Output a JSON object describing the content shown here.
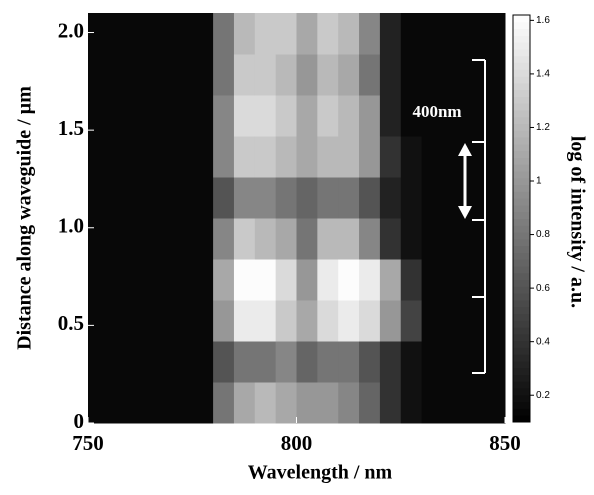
{
  "chart_data": {
    "type": "heatmap",
    "x_label": "Wavelength / nm",
    "y_label": "Distance along waveguide / µm",
    "colorbar_label": "log of intensity / a.u.",
    "annotation": "400nm",
    "xlim": [
      750,
      850
    ],
    "xticks": [
      750,
      800,
      850
    ],
    "ylim": [
      0,
      2.1
    ],
    "yticks": [
      0,
      0.5,
      {
        "value": 1,
        "label": "1.0"
      },
      1.5,
      {
        "value": 2,
        "label": "2.0"
      }
    ],
    "zlim": [
      0.1,
      1.62
    ],
    "zticks": [
      0.2,
      0.4,
      0.6,
      0.8,
      1,
      1.2,
      1.4,
      1.6
    ],
    "colormap": [
      "#000000",
      "#ffffff"
    ],
    "xbins": [
      750,
      755,
      760,
      765,
      770,
      775,
      780,
      785,
      790,
      795,
      800,
      805,
      810,
      815,
      820,
      825,
      830,
      835,
      840,
      845,
      850
    ],
    "ybins": [
      0,
      0.21,
      0.42,
      0.63,
      0.84,
      1.05,
      1.26,
      1.47,
      1.68,
      1.89,
      2.1
    ],
    "z": [
      [
        0.15,
        0.15,
        0.15,
        0.15,
        0.15,
        0.15,
        0.8,
        1.1,
        1.2,
        1.1,
        1.0,
        1.0,
        0.9,
        0.7,
        0.4,
        0.2,
        0.15,
        0.15,
        0.15,
        0.15
      ],
      [
        0.15,
        0.15,
        0.15,
        0.15,
        0.15,
        0.15,
        0.6,
        0.8,
        0.8,
        0.9,
        0.7,
        0.8,
        0.8,
        0.6,
        0.4,
        0.2,
        0.15,
        0.15,
        0.15,
        0.15
      ],
      [
        0.15,
        0.15,
        0.15,
        0.15,
        0.15,
        0.15,
        1.0,
        1.5,
        1.5,
        1.3,
        1.1,
        1.4,
        1.5,
        1.4,
        1.0,
        0.5,
        0.15,
        0.15,
        0.15,
        0.15
      ],
      [
        0.15,
        0.15,
        0.15,
        0.15,
        0.15,
        0.15,
        1.1,
        1.6,
        1.6,
        1.4,
        1.0,
        1.5,
        1.6,
        1.5,
        1.1,
        0.4,
        0.15,
        0.15,
        0.15,
        0.15
      ],
      [
        0.15,
        0.15,
        0.15,
        0.15,
        0.15,
        0.15,
        0.9,
        1.3,
        1.2,
        1.1,
        0.8,
        1.2,
        1.2,
        0.9,
        0.4,
        0.2,
        0.15,
        0.15,
        0.15,
        0.15
      ],
      [
        0.15,
        0.15,
        0.15,
        0.15,
        0.15,
        0.15,
        0.6,
        0.9,
        0.9,
        0.8,
        0.7,
        0.8,
        0.8,
        0.6,
        0.3,
        0.2,
        0.15,
        0.15,
        0.15,
        0.15
      ],
      [
        0.15,
        0.15,
        0.15,
        0.15,
        0.15,
        0.15,
        0.9,
        1.3,
        1.3,
        1.2,
        1.1,
        1.2,
        1.2,
        1.0,
        0.4,
        0.2,
        0.15,
        0.15,
        0.15,
        0.15
      ],
      [
        0.15,
        0.15,
        0.15,
        0.15,
        0.15,
        0.15,
        0.9,
        1.4,
        1.4,
        1.3,
        1.1,
        1.3,
        1.2,
        1.0,
        0.3,
        0.15,
        0.15,
        0.15,
        0.15,
        0.15
      ],
      [
        0.15,
        0.15,
        0.15,
        0.15,
        0.15,
        0.15,
        0.8,
        1.3,
        1.3,
        1.2,
        1.0,
        1.2,
        1.1,
        0.8,
        0.3,
        0.15,
        0.15,
        0.15,
        0.15,
        0.15
      ],
      [
        0.15,
        0.15,
        0.15,
        0.15,
        0.15,
        0.15,
        0.8,
        1.2,
        1.3,
        1.3,
        1.1,
        1.3,
        1.2,
        0.9,
        0.3,
        0.15,
        0.15,
        0.15,
        0.15,
        0.15
      ]
    ]
  }
}
